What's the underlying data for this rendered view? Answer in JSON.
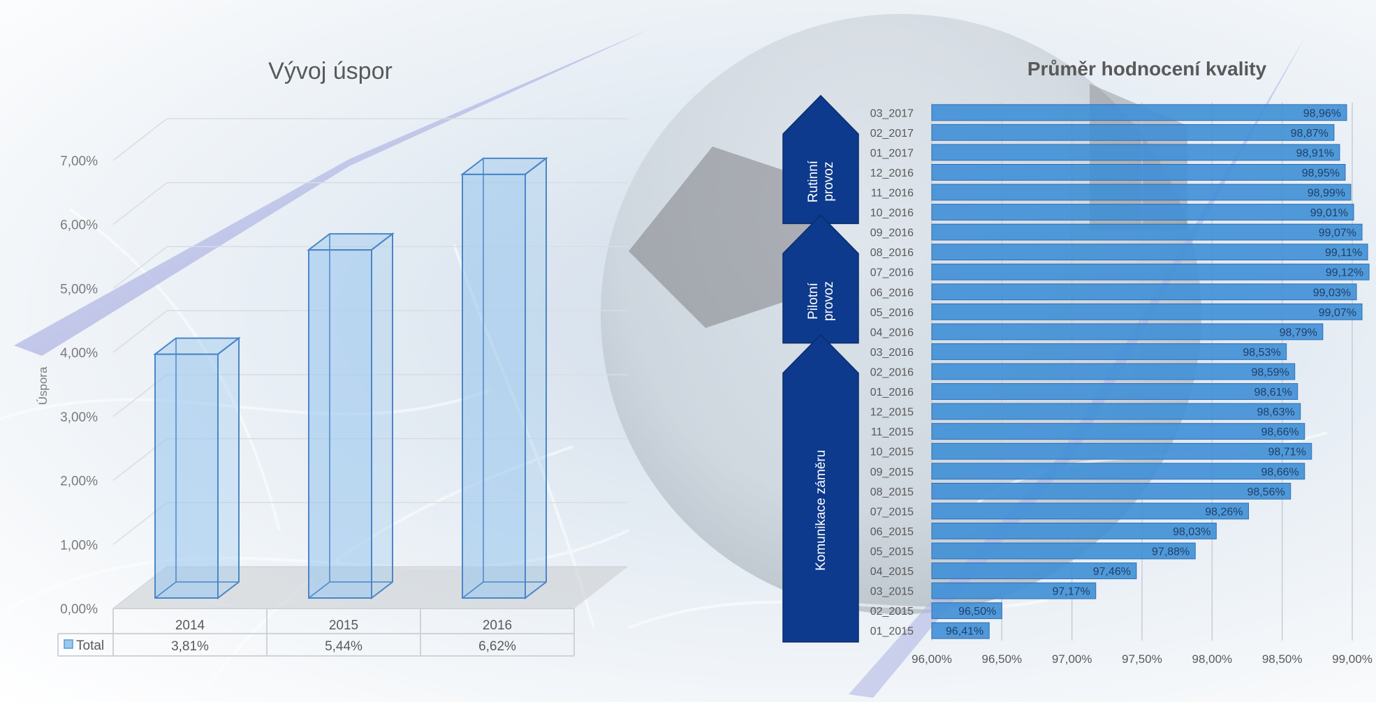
{
  "chart_data": [
    {
      "type": "bar",
      "title": "Vývoj úspor",
      "ylabel": "Úspora",
      "xlabel": "",
      "categories": [
        "2014",
        "2015",
        "2016"
      ],
      "series": [
        {
          "name": "Total",
          "values": [
            3.81,
            5.44,
            6.62
          ],
          "value_labels": [
            "3,81%",
            "5,44%",
            "6,62%"
          ]
        }
      ],
      "ylim": [
        0,
        7
      ],
      "y_ticks": [
        "0,00%",
        "1,00%",
        "2,00%",
        "3,00%",
        "4,00%",
        "5,00%",
        "6,00%",
        "7,00%"
      ],
      "grid": true,
      "legend": "data-table",
      "bar_color": "#9cc8ee"
    },
    {
      "type": "bar",
      "orientation": "horizontal",
      "title": "Průměr hodnocení kvality",
      "categories": [
        "03_2017",
        "02_2017",
        "01_2017",
        "12_2016",
        "11_2016",
        "10_2016",
        "09_2016",
        "08_2016",
        "07_2016",
        "06_2016",
        "05_2016",
        "04_2016",
        "03_2016",
        "02_2016",
        "01_2016",
        "12_2015",
        "11_2015",
        "10_2015",
        "09_2015",
        "08_2015",
        "07_2015",
        "06_2015",
        "05_2015",
        "04_2015",
        "03_2015",
        "02_2015",
        "01_2015"
      ],
      "values": [
        98.96,
        98.87,
        98.91,
        98.95,
        98.99,
        99.01,
        99.07,
        99.11,
        99.12,
        99.03,
        99.07,
        98.79,
        98.53,
        98.59,
        98.61,
        98.63,
        98.66,
        98.71,
        98.66,
        98.56,
        98.26,
        98.03,
        97.88,
        97.46,
        97.17,
        96.5,
        96.41
      ],
      "value_labels": [
        "98,96%",
        "98,87%",
        "98,91%",
        "98,95%",
        "98,99%",
        "99,01%",
        "99,07%",
        "99,11%",
        "99,12%",
        "99,03%",
        "99,07%",
        "98,79%",
        "98,53%",
        "98,59%",
        "98,61%",
        "98,63%",
        "98,66%",
        "98,71%",
        "98,66%",
        "98,56%",
        "98,26%",
        "98,03%",
        "97,88%",
        "97,46%",
        "97,17%",
        "96,50%",
        "96,41%"
      ],
      "xlim": [
        96,
        99
      ],
      "x_ticks": [
        "96,00%",
        "96,50%",
        "97,00%",
        "97,50%",
        "98,00%",
        "98,50%",
        "99,00%"
      ],
      "grid": true,
      "bar_color": "#3f8fd6",
      "phases": [
        {
          "label": "Rutinní provoz",
          "lines": [
            "Rutinní",
            "provoz"
          ],
          "from": "03_2017",
          "to": "10_2016"
        },
        {
          "label": "Pilotní provoz",
          "lines": [
            "Pilotní",
            "provoz"
          ],
          "from": "09_2016",
          "to": "04_2016"
        },
        {
          "label": "Komunikace záměru",
          "lines": [
            "Komunikace záměru"
          ],
          "from": "03_2016",
          "to": "01_2015"
        }
      ],
      "phase_color": "#0d3a8c"
    }
  ]
}
